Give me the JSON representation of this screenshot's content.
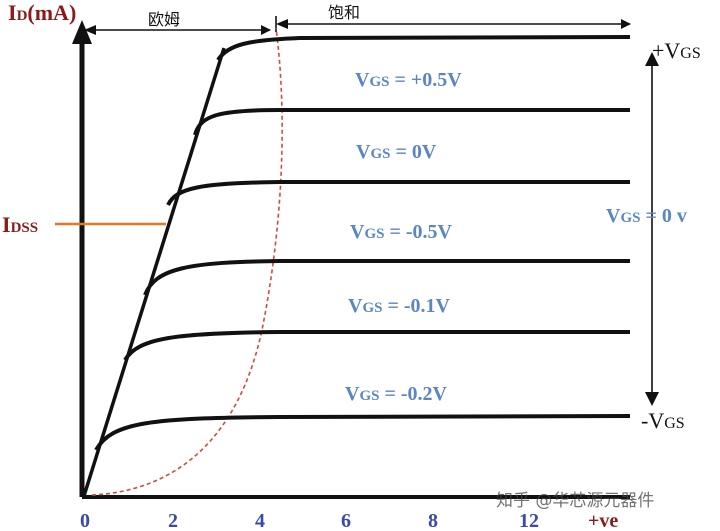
{
  "colors": {
    "axis": "#111111",
    "label_red": "#8b1a1a",
    "idss_line": "#e87722",
    "curve_label": "#5b86c4",
    "tick_label": "#3a4aa8",
    "pinchoff": "#d44a3a"
  },
  "labels": {
    "id_axis": {
      "main": "I",
      "sub": "D",
      "unit": "(mA)"
    },
    "idss": {
      "main": "I",
      "sub": "DSS"
    },
    "region_ohmic": "欧姆",
    "region_saturation": "饱和",
    "plus_vgs": {
      "prefix": "+V",
      "sub": "GS"
    },
    "minus_vgs": {
      "prefix": "-V",
      "sub": "GS"
    },
    "vgs_zero": {
      "main": "V",
      "sub": "GS",
      "rest": " = 0 v"
    },
    "x_end": "+ve",
    "watermark": "知乎 @华芯源元器件"
  },
  "curves": [
    {
      "label_main": "V",
      "label_sub": "GS",
      "label_rest": " = +0.5V",
      "level": 6
    },
    {
      "label_main": "V",
      "label_sub": "GS",
      "label_rest": " = 0V",
      "level": 5
    },
    {
      "label_main": "V",
      "label_sub": "GS",
      "label_rest": " = -0.5V",
      "level": 4
    },
    {
      "label_main": "V",
      "label_sub": "GS",
      "label_rest": " = -0.1V",
      "level": 3
    },
    {
      "label_main": "V",
      "label_sub": "GS",
      "label_rest": " = -0.2V",
      "level": 2
    },
    {
      "label_main": "",
      "label_sub": "",
      "label_rest": "",
      "level": 1
    }
  ],
  "x_ticks": [
    "0",
    "2",
    "4",
    "6",
    "8",
    "12"
  ]
}
